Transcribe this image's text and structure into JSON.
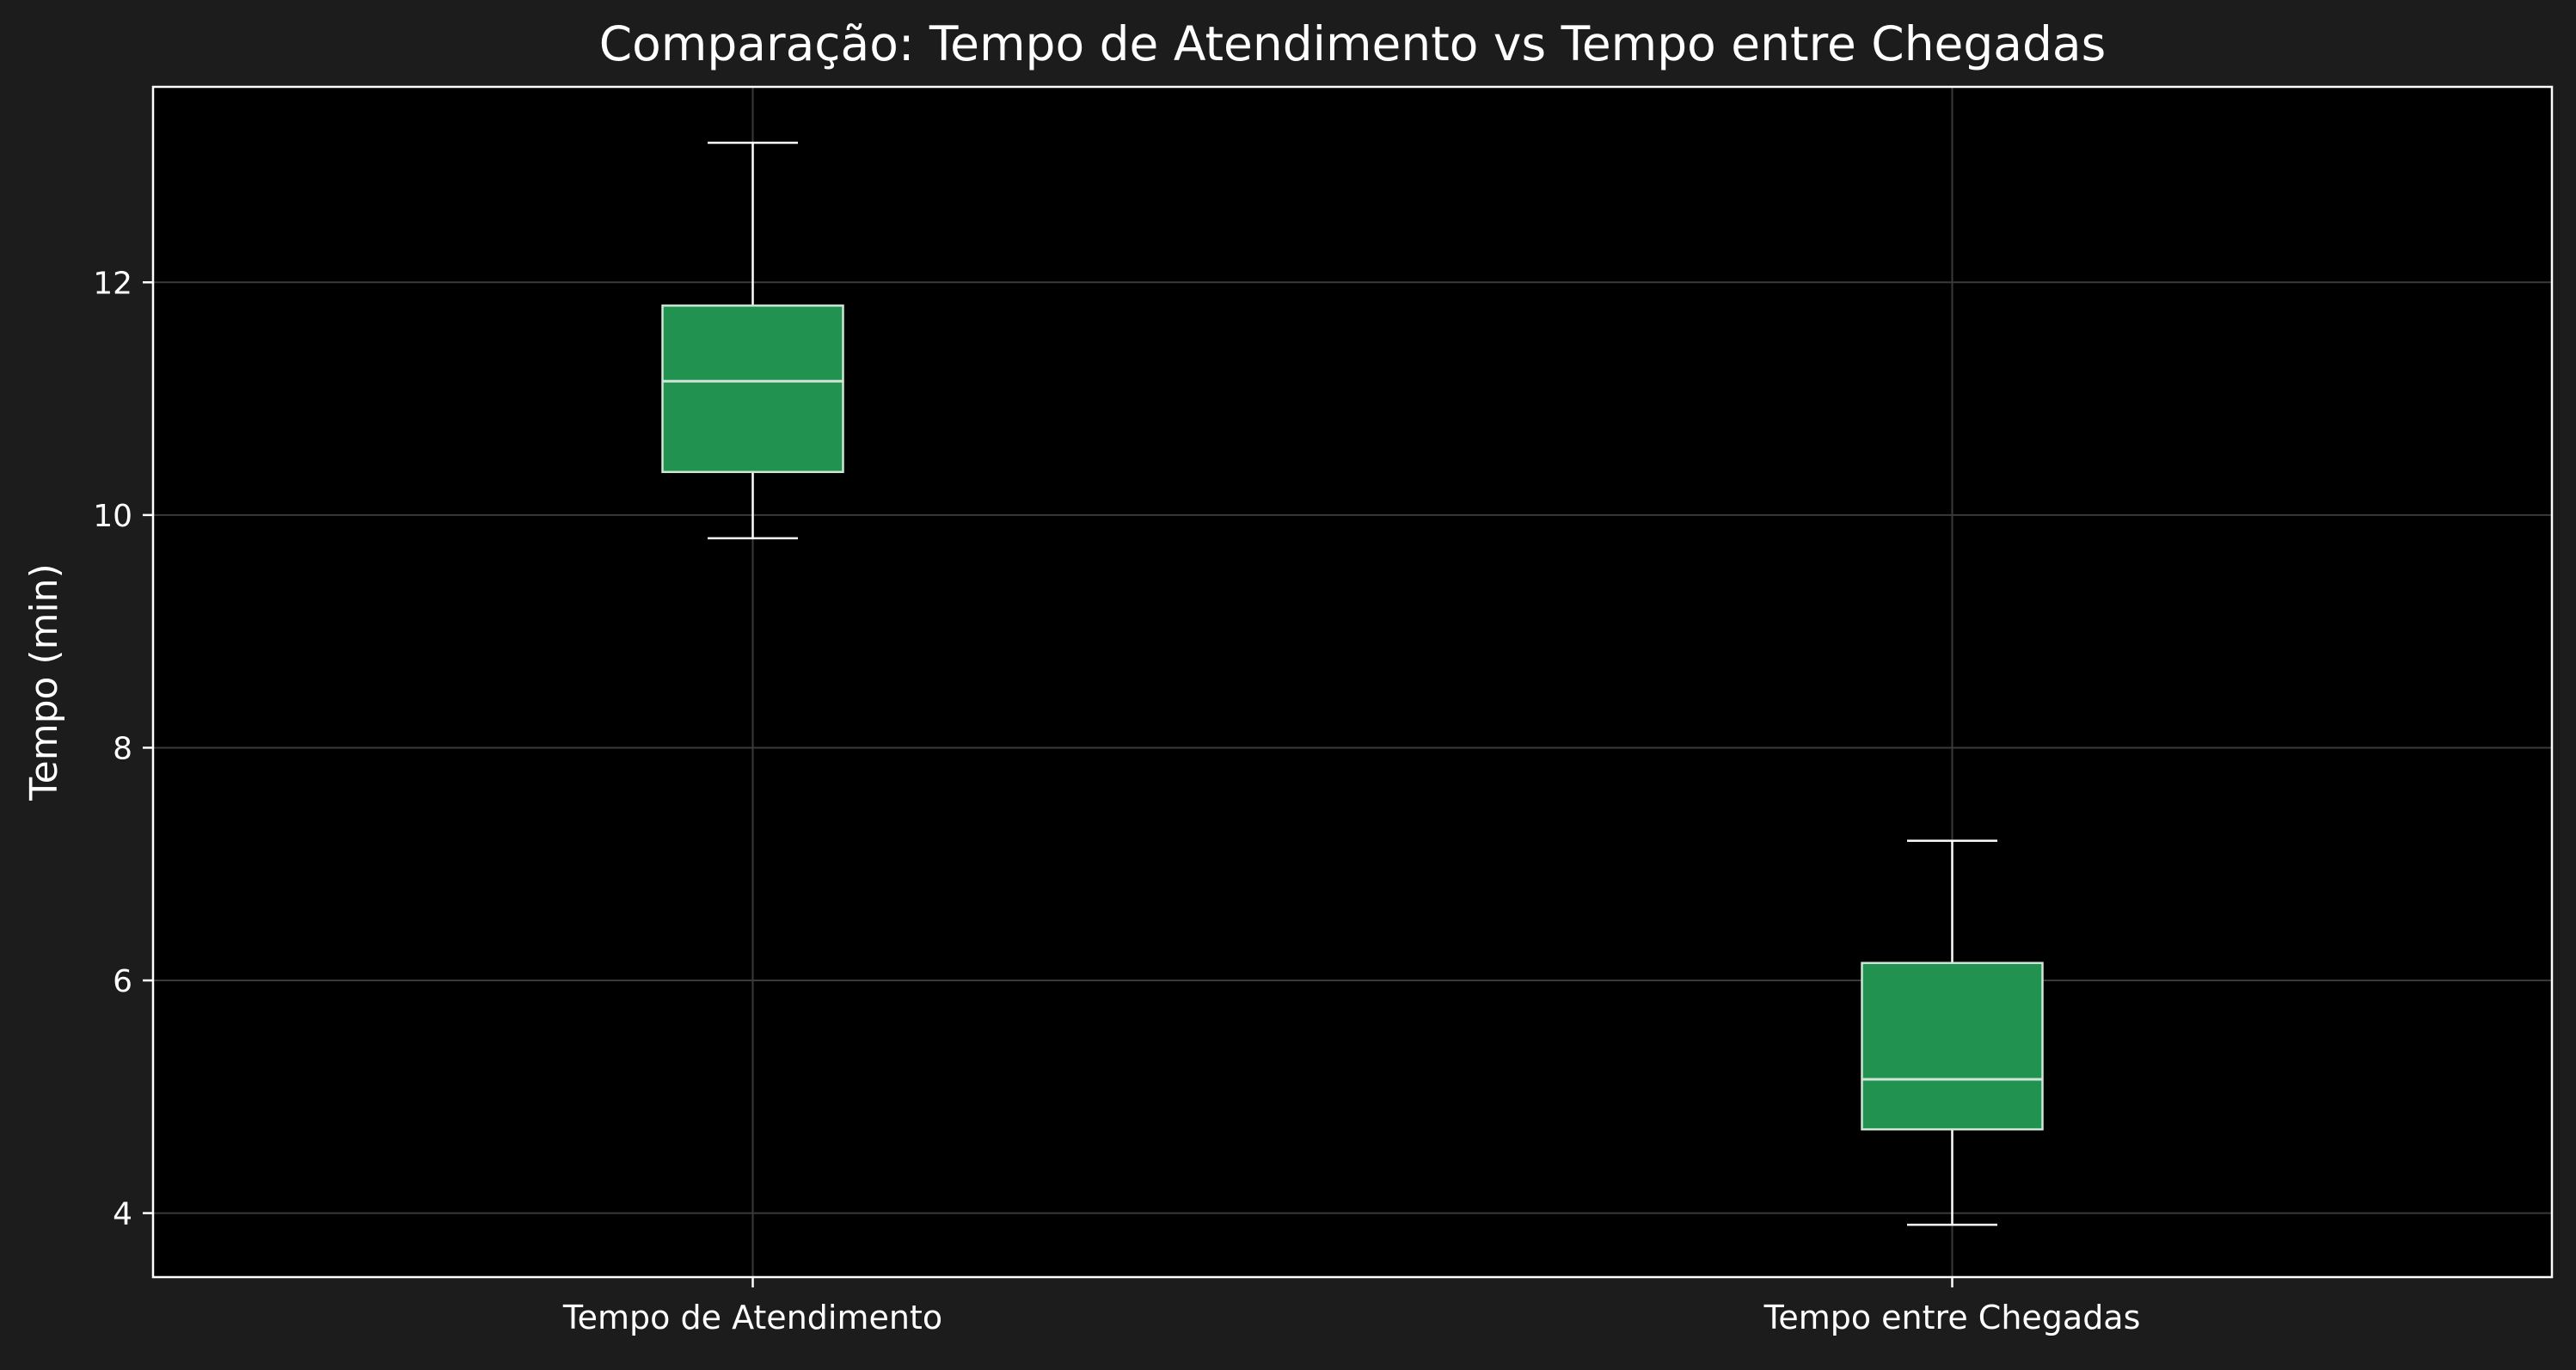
{
  "chart_data": {
    "type": "box",
    "title": "Comparação: Tempo de Atendimento vs Tempo entre Chegadas",
    "xlabel": "",
    "ylabel": "Tempo (min)",
    "ylim": [
      3.45,
      13.68
    ],
    "yticks": [
      4,
      6,
      8,
      10,
      12
    ],
    "grid": true,
    "categories": [
      "Tempo de Atendimento",
      "Tempo entre Chegadas"
    ],
    "boxes": [
      {
        "whisker_low": 9.8,
        "q1": 10.37,
        "median": 11.15,
        "q3": 11.8,
        "whisker_high": 13.2
      },
      {
        "whisker_low": 3.9,
        "q1": 4.72,
        "median": 5.15,
        "q3": 6.15,
        "whisker_high": 7.2
      }
    ],
    "colors": {
      "background": "#1c1c1c",
      "plot_background": "#000000",
      "box_fill": "#229251",
      "box_edge": "#cfe5d6",
      "median": "#cfe5d6",
      "whisker": "#ffffff",
      "grid": "#3a3a3a",
      "axis": "#ffffff",
      "text": "#ffffff"
    }
  }
}
